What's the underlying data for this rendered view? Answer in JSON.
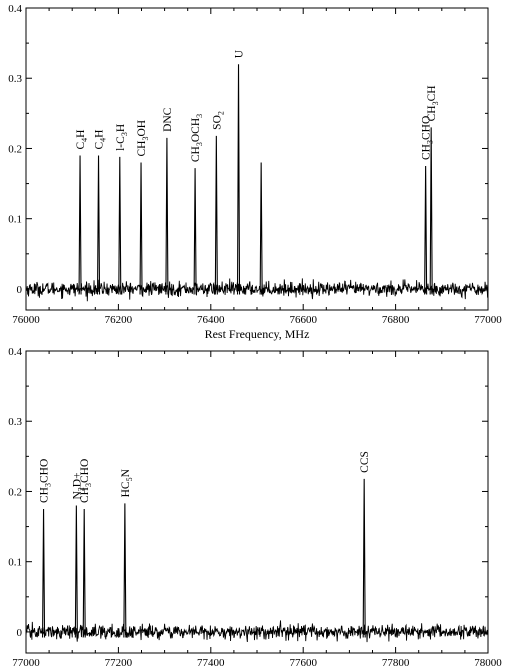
{
  "chart_data": [
    {
      "type": "line",
      "title": "",
      "xlabel": "Rest Frequency, MHz",
      "ylabel": "",
      "xlim": [
        76000,
        77000
      ],
      "ylim": [
        -0.03,
        0.4
      ],
      "x_ticks": [
        76000,
        76200,
        76400,
        76600,
        76800,
        77000
      ],
      "y_ticks": [
        0,
        0.1,
        0.2,
        0.3,
        0.4
      ],
      "y_tick_labels": [
        "0",
        "0.1",
        "0.2",
        "0.3",
        "0.4"
      ],
      "grid": false,
      "noise_rms": 0.005,
      "peaks": [
        {
          "x": 76117,
          "y": 0.19,
          "label": "C4H",
          "label_parts": [
            {
              "t": "C"
            },
            {
              "t": "4",
              "sub": true
            },
            {
              "t": "H"
            }
          ]
        },
        {
          "x": 76157,
          "y": 0.19,
          "label": "C4H",
          "label_parts": [
            {
              "t": "C"
            },
            {
              "t": "4",
              "sub": true
            },
            {
              "t": "H"
            }
          ]
        },
        {
          "x": 76203,
          "y": 0.188,
          "label": "l-C3H",
          "label_parts": [
            {
              "t": "l-C"
            },
            {
              "t": "3",
              "sub": true
            },
            {
              "t": "H"
            }
          ]
        },
        {
          "x": 76249,
          "y": 0.18,
          "label": "CH3OH",
          "label_parts": [
            {
              "t": "CH"
            },
            {
              "t": "3",
              "sub": true
            },
            {
              "t": "OH"
            }
          ]
        },
        {
          "x": 76305,
          "y": 0.215,
          "label": "DNC",
          "label_parts": [
            {
              "t": "DNC"
            }
          ]
        },
        {
          "x": 76366,
          "y": 0.172,
          "label": "CH3OCH3",
          "label_parts": [
            {
              "t": "CH"
            },
            {
              "t": "3",
              "sub": true
            },
            {
              "t": "OCH"
            },
            {
              "t": "3",
              "sub": true
            }
          ]
        },
        {
          "x": 76412,
          "y": 0.218,
          "label": "SO2",
          "label_parts": [
            {
              "t": "SO"
            },
            {
              "t": "2",
              "sub": true
            }
          ]
        },
        {
          "x": 76460,
          "y": 0.32,
          "label": "U",
          "label_parts": [
            {
              "t": "U"
            }
          ]
        },
        {
          "x": 76509,
          "y": 0.18,
          "label": "",
          "label_parts": []
        },
        {
          "x": 76865,
          "y": 0.175,
          "label": "CH3CHO",
          "label_parts": [
            {
              "t": "CH"
            },
            {
              "t": "3",
              "sub": true
            },
            {
              "t": "CHO"
            }
          ]
        },
        {
          "x": 76877,
          "y": 0.23,
          "label": "CH3CH",
          "label_parts": [
            {
              "t": "CH"
            },
            {
              "t": "3",
              "sub": true
            },
            {
              "t": "CH"
            }
          ]
        }
      ]
    },
    {
      "type": "line",
      "title": "",
      "xlabel": "Rest Frequency, MHz",
      "ylabel": "",
      "xlim": [
        77000,
        78000
      ],
      "ylim": [
        -0.03,
        0.4
      ],
      "x_ticks": [
        77000,
        77200,
        77400,
        77600,
        77800,
        78000
      ],
      "y_ticks": [
        0,
        0.1,
        0.2,
        0.3,
        0.4
      ],
      "y_tick_labels": [
        "0",
        "0.1",
        "0.2",
        "0.3",
        "0.4"
      ],
      "grid": false,
      "noise_rms": 0.005,
      "peaks": [
        {
          "x": 77038,
          "y": 0.175,
          "label": "CH3CHO",
          "label_parts": [
            {
              "t": "CH"
            },
            {
              "t": "3",
              "sub": true
            },
            {
              "t": "CHO"
            }
          ]
        },
        {
          "x": 77109,
          "y": 0.18,
          "label": "N2D+",
          "label_parts": [
            {
              "t": "N"
            },
            {
              "t": "2",
              "sub": true
            },
            {
              "t": "D+"
            }
          ]
        },
        {
          "x": 77126,
          "y": 0.175,
          "label": "CH3CHO",
          "label_parts": [
            {
              "t": "CH"
            },
            {
              "t": "3",
              "sub": true
            },
            {
              "t": "CHO"
            }
          ]
        },
        {
          "x": 77214,
          "y": 0.183,
          "label": "HC5N",
          "label_parts": [
            {
              "t": "HC"
            },
            {
              "t": "5",
              "sub": true
            },
            {
              "t": "N"
            }
          ]
        },
        {
          "x": 77732,
          "y": 0.218,
          "label": "CCS",
          "label_parts": [
            {
              "t": "CCS"
            }
          ]
        }
      ]
    }
  ]
}
